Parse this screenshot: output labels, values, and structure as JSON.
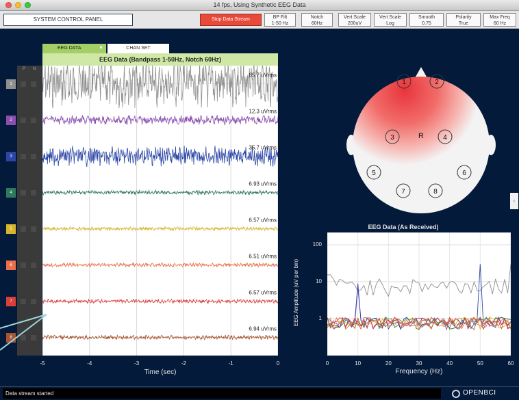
{
  "window": {
    "title": "14 fps, Using Synthetic EEG Data"
  },
  "controls": {
    "system_panel": "SYSTEM CONTROL PANEL",
    "stop_stream": "Stop Data Stream",
    "settings": [
      {
        "label": "BP Filt",
        "value": "1-50 Hz"
      },
      {
        "label": "Notch",
        "value": "60Hz"
      },
      {
        "label": "Vert Scale",
        "value": "200uV"
      },
      {
        "label": "Vert Scale",
        "value": "Log"
      },
      {
        "label": "Smooth",
        "value": "0.75"
      },
      {
        "label": "Polarity",
        "value": "True"
      },
      {
        "label": "Max Freq",
        "value": "60 Hz"
      }
    ]
  },
  "eeg_panel": {
    "tab_eeg": "EEG DATA",
    "tab_chanset": "CHAN SET",
    "header": "EEG Data (Bandpass 1-50Hz, Notch 60Hz)",
    "col_p": "P",
    "col_n": "N",
    "xlabel": "Time (sec)",
    "xticks": [
      "-5",
      "-4",
      "-3",
      "-2",
      "-1",
      "0"
    ],
    "channels": [
      {
        "num": "1",
        "color": "#8f8f8f",
        "rms": "65.7 uVrms",
        "amp": 26,
        "freq": 0.9
      },
      {
        "num": "2",
        "color": "#8b4fb0",
        "rms": "12.3 uVrms",
        "amp": 5,
        "freq": 0.55
      },
      {
        "num": "3",
        "color": "#2b46a6",
        "rms": "35.7 uVrms",
        "amp": 11,
        "freq": 1.3
      },
      {
        "num": "4",
        "color": "#2e7a5c",
        "rms": "6.93 uVrms",
        "amp": 2.4,
        "freq": 0.9
      },
      {
        "num": "5",
        "color": "#d7b52a",
        "rms": "6.57 uVrms",
        "amp": 2.2,
        "freq": 0.9
      },
      {
        "num": "6",
        "color": "#e9704a",
        "rms": "6.51 uVrms",
        "amp": 2.2,
        "freq": 0.9
      },
      {
        "num": "7",
        "color": "#d9403a",
        "rms": "6.57 uVrms",
        "amp": 2.2,
        "freq": 0.9
      },
      {
        "num": "8",
        "color": "#a75430",
        "rms": "6.94 uVrms",
        "amp": 2.4,
        "freq": 0.9
      }
    ]
  },
  "head_plot": {
    "center_label": "R",
    "electrodes": [
      "1",
      "2",
      "3",
      "4",
      "5",
      "6",
      "7",
      "8"
    ]
  },
  "fft_panel": {
    "header": "EEG Data (As Received)",
    "ylabel": "EEG Amplitude (uV per bin)",
    "yticks": [
      "100",
      "10",
      "1"
    ],
    "xlabel": "Frequency (Hz)",
    "xticks": [
      "0",
      "10",
      "20",
      "30",
      "40",
      "50",
      "60"
    ]
  },
  "status": {
    "message": "Data stream started",
    "brand": "OPENBCI"
  }
}
